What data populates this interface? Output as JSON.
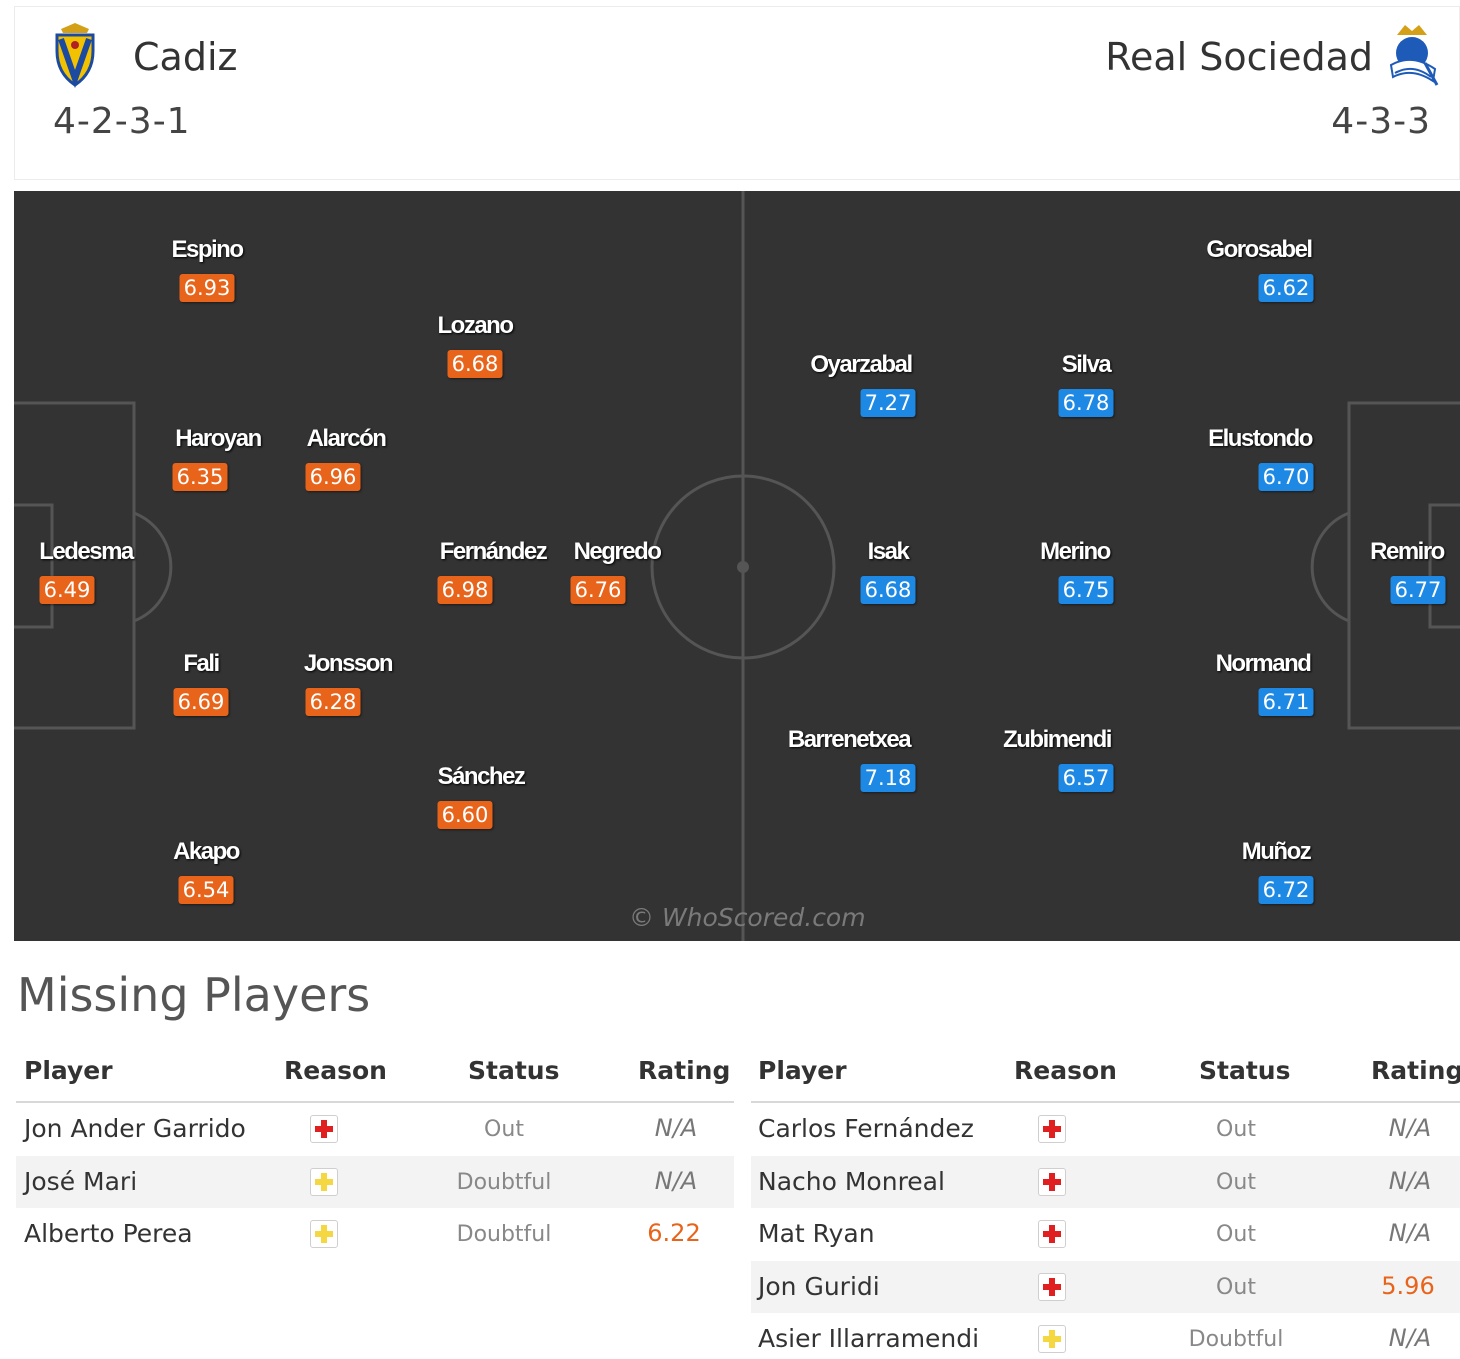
{
  "home": {
    "name": "Cadiz",
    "formation": "4-2-3-1",
    "badge_icon": "cadiz-crest-icon",
    "rating_color": "#e8641b",
    "players": [
      {
        "name": "Espino",
        "rating": "6.93"
      },
      {
        "name": "Lozano",
        "rating": "6.68"
      },
      {
        "name": "Haroyan",
        "rating": "6.35"
      },
      {
        "name": "Alarcón",
        "rating": "6.96"
      },
      {
        "name": "Ledesma",
        "rating": "6.49"
      },
      {
        "name": "Fernández",
        "rating": "6.98"
      },
      {
        "name": "Negredo",
        "rating": "6.76"
      },
      {
        "name": "Fali",
        "rating": "6.69"
      },
      {
        "name": "Jonsson",
        "rating": "6.28"
      },
      {
        "name": "Sánchez",
        "rating": "6.60"
      },
      {
        "name": "Akapo",
        "rating": "6.54"
      }
    ]
  },
  "away": {
    "name": "Real Sociedad",
    "formation": "4-3-3",
    "badge_icon": "real-sociedad-crest-icon",
    "rating_color": "#1e88e5",
    "players": [
      {
        "name": "Gorosabel",
        "rating": "6.62"
      },
      {
        "name": "Oyarzabal",
        "rating": "7.27"
      },
      {
        "name": "Silva",
        "rating": "6.78"
      },
      {
        "name": "Elustondo",
        "rating": "6.70"
      },
      {
        "name": "Isak",
        "rating": "6.68"
      },
      {
        "name": "Merino",
        "rating": "6.75"
      },
      {
        "name": "Remiro",
        "rating": "6.77"
      },
      {
        "name": "Normand",
        "rating": "6.71"
      },
      {
        "name": "Barrenetxea",
        "rating": "7.18"
      },
      {
        "name": "Zubimendi",
        "rating": "6.57"
      },
      {
        "name": "Muñoz",
        "rating": "6.72"
      }
    ]
  },
  "pitch": {
    "watermark": "© WhoScored.com"
  },
  "missing": {
    "title": "Missing Players",
    "headers": {
      "player": "Player",
      "reason": "Reason",
      "status": "Status",
      "rating": "Rating"
    },
    "home": [
      {
        "player": "Jon Ander Garrido",
        "reason_icon": "injury-icon",
        "status": "Out",
        "rating": "N/A"
      },
      {
        "player": "José Mari",
        "reason_icon": "doubtful-icon",
        "status": "Doubtful",
        "rating": "N/A"
      },
      {
        "player": "Alberto Perea",
        "reason_icon": "doubtful-icon",
        "status": "Doubtful",
        "rating": "6.22"
      }
    ],
    "away": [
      {
        "player": "Carlos Fernández",
        "reason_icon": "injury-icon",
        "status": "Out",
        "rating": "N/A"
      },
      {
        "player": "Nacho Monreal",
        "reason_icon": "injury-icon",
        "status": "Out",
        "rating": "N/A"
      },
      {
        "player": "Mat Ryan",
        "reason_icon": "injury-icon",
        "status": "Out",
        "rating": "N/A"
      },
      {
        "player": "Jon Guridi",
        "reason_icon": "injury-icon",
        "status": "Out",
        "rating": "5.96"
      },
      {
        "player": "Asier Illarramendi",
        "reason_icon": "doubtful-icon",
        "status": "Doubtful",
        "rating": "N/A"
      }
    ]
  }
}
